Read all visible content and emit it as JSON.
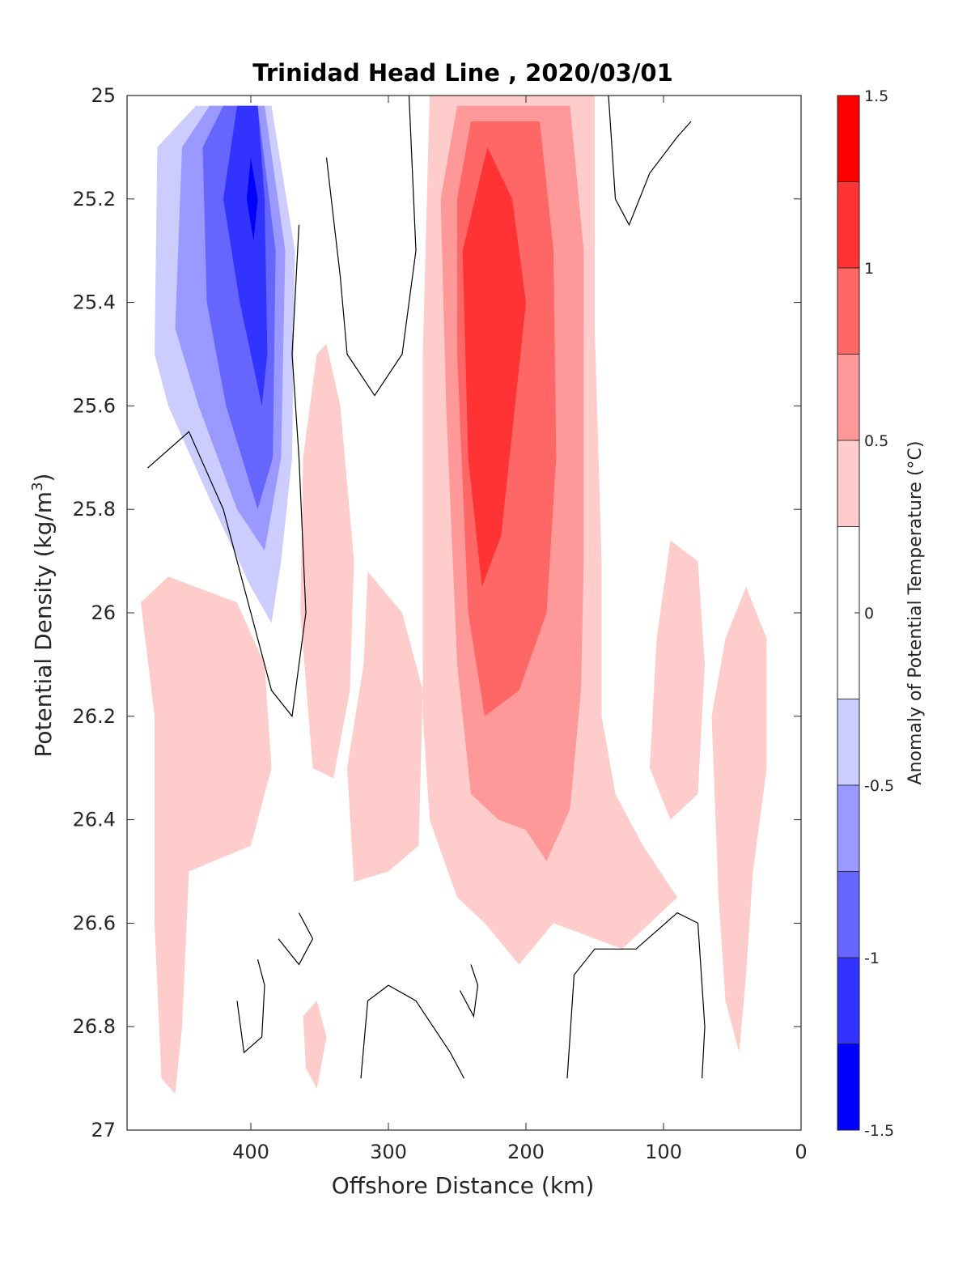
{
  "chart_data": {
    "type": "contourf",
    "title": "Trinidad Head Line , 2020/03/01",
    "xlabel": "Offshore Distance (km)",
    "ylabel_main": "Potential Density (kg/m",
    "ylabel_sup": "3",
    "ylabel_close": ")",
    "x_reversed": true,
    "y_reversed": true,
    "xlim": [
      490,
      0
    ],
    "ylim": [
      25,
      27
    ],
    "xticks": [
      400,
      300,
      200,
      100,
      0
    ],
    "yticks": [
      25,
      25.2,
      25.4,
      25.6,
      25.8,
      26,
      26.2,
      26.4,
      26.6,
      26.8,
      27
    ],
    "colorbar": {
      "label": "Anomaly of Potential Temperature (°C)",
      "range": [
        -1.5,
        1.5
      ],
      "ticks": [
        "1.5",
        "1",
        "0.5",
        "0",
        "-0.5",
        "-1",
        "-1.5"
      ],
      "tick_values": [
        1.5,
        1,
        0.5,
        0,
        -0.5,
        -1,
        -1.5
      ],
      "levels": [
        {
          "from": 1.25,
          "to": 1.5,
          "color": "#ff0000"
        },
        {
          "from": 1.0,
          "to": 1.25,
          "color": "#ff3333"
        },
        {
          "from": 0.75,
          "to": 1.0,
          "color": "#ff6666"
        },
        {
          "from": 0.5,
          "to": 0.75,
          "color": "#ff9999"
        },
        {
          "from": 0.25,
          "to": 0.5,
          "color": "#ffcccc"
        },
        {
          "from": -0.25,
          "to": 0.25,
          "color": "#ffffff"
        },
        {
          "from": -0.5,
          "to": -0.25,
          "color": "#ccccff"
        },
        {
          "from": -0.75,
          "to": -0.5,
          "color": "#9999ff"
        },
        {
          "from": -1.0,
          "to": -0.75,
          "color": "#6666ff"
        },
        {
          "from": -1.25,
          "to": -1.0,
          "color": "#3333ff"
        },
        {
          "from": -1.5,
          "to": -1.25,
          "color": "#0000ff"
        }
      ]
    },
    "filled_regions": [
      {
        "level": 0.375,
        "color": "#ffcccc",
        "points": [
          [
            270,
            25
          ],
          [
            150,
            25
          ],
          [
            150,
            25.45
          ],
          [
            145,
            25.9
          ],
          [
            145,
            26.2
          ],
          [
            135,
            26.35
          ],
          [
            115,
            26.45
          ],
          [
            90,
            26.55
          ],
          [
            110,
            26.6
          ],
          [
            130,
            26.65
          ],
          [
            180,
            26.6
          ],
          [
            205,
            26.68
          ],
          [
            230,
            26.6
          ],
          [
            250,
            26.55
          ],
          [
            270,
            26.4
          ],
          [
            275,
            26.2
          ],
          [
            275,
            25.5
          ]
        ]
      },
      {
        "level": 0.375,
        "color": "#ffcccc",
        "points": [
          [
            345,
            25.48
          ],
          [
            335,
            25.6
          ],
          [
            325,
            25.9
          ],
          [
            328,
            26.15
          ],
          [
            340,
            26.32
          ],
          [
            355,
            26.3
          ],
          [
            364,
            26
          ],
          [
            362,
            25.7
          ],
          [
            352,
            25.5
          ]
        ]
      },
      {
        "level": 0.375,
        "color": "#ffcccc",
        "points": [
          [
            480,
            25.98
          ],
          [
            470,
            26.2
          ],
          [
            470,
            26.6
          ],
          [
            465,
            26.9
          ],
          [
            455,
            26.93
          ],
          [
            450,
            26.8
          ],
          [
            445,
            26.5
          ],
          [
            400,
            26.45
          ],
          [
            385,
            26.3
          ],
          [
            390,
            26.1
          ],
          [
            410,
            25.98
          ],
          [
            440,
            25.95
          ],
          [
            460,
            25.93
          ]
        ]
      },
      {
        "level": 0.375,
        "color": "#ffcccc",
        "points": [
          [
            315,
            25.92
          ],
          [
            290,
            26.0
          ],
          [
            275,
            26.15
          ],
          [
            278,
            26.45
          ],
          [
            300,
            26.5
          ],
          [
            325,
            26.52
          ],
          [
            330,
            26.3
          ],
          [
            318,
            26.1
          ]
        ]
      },
      {
        "level": 0.375,
        "color": "#ffcccc",
        "points": [
          [
            95,
            25.86
          ],
          [
            75,
            25.9
          ],
          [
            70,
            26.1
          ],
          [
            75,
            26.35
          ],
          [
            95,
            26.4
          ],
          [
            110,
            26.3
          ],
          [
            105,
            26.05
          ]
        ]
      },
      {
        "level": 0.375,
        "color": "#ffcccc",
        "points": [
          [
            40,
            25.95
          ],
          [
            25,
            26.05
          ],
          [
            25,
            26.3
          ],
          [
            35,
            26.5
          ],
          [
            40,
            26.7
          ],
          [
            45,
            26.85
          ],
          [
            55,
            26.75
          ],
          [
            60,
            26.55
          ],
          [
            65,
            26.2
          ],
          [
            55,
            26.05
          ]
        ]
      },
      {
        "level": 0.375,
        "color": "#ffcccc",
        "points": [
          [
            352,
            26.75
          ],
          [
            345,
            26.82
          ],
          [
            352,
            26.92
          ],
          [
            360,
            26.88
          ],
          [
            362,
            26.78
          ]
        ]
      },
      {
        "level": 0.625,
        "color": "#ff9999",
        "points": [
          [
            250,
            25.02
          ],
          [
            168,
            25.02
          ],
          [
            158,
            25.3
          ],
          [
            158,
            25.6
          ],
          [
            158,
            25.9
          ],
          [
            160,
            26.15
          ],
          [
            168,
            26.38
          ],
          [
            185,
            26.48
          ],
          [
            200,
            26.42
          ],
          [
            220,
            26.4
          ],
          [
            240,
            26.35
          ],
          [
            250,
            26.1
          ],
          [
            258,
            25.6
          ],
          [
            262,
            25.2
          ]
        ]
      },
      {
        "level": 0.875,
        "color": "#ff6666",
        "points": [
          [
            240,
            25.05
          ],
          [
            190,
            25.05
          ],
          [
            180,
            25.3
          ],
          [
            178,
            25.7
          ],
          [
            185,
            26.0
          ],
          [
            205,
            26.15
          ],
          [
            230,
            26.2
          ],
          [
            242,
            26.0
          ],
          [
            250,
            25.5
          ],
          [
            250,
            25.2
          ]
        ]
      },
      {
        "level": 1.125,
        "color": "#ff3333",
        "points": [
          [
            228,
            25.1
          ],
          [
            210,
            25.2
          ],
          [
            200,
            25.4
          ],
          [
            210,
            25.65
          ],
          [
            218,
            25.85
          ],
          [
            232,
            25.95
          ],
          [
            242,
            25.7
          ],
          [
            246,
            25.3
          ]
        ]
      },
      {
        "level": -0.375,
        "color": "#ccccff",
        "points": [
          [
            440,
            25.02
          ],
          [
            385,
            25.02
          ],
          [
            368,
            25.3
          ],
          [
            370,
            25.7
          ],
          [
            378,
            25.9
          ],
          [
            385,
            26.02
          ],
          [
            400,
            25.95
          ],
          [
            430,
            25.78
          ],
          [
            460,
            25.6
          ],
          [
            470,
            25.5
          ],
          [
            468,
            25.1
          ]
        ]
      },
      {
        "level": -0.625,
        "color": "#9999ff",
        "points": [
          [
            430,
            25.02
          ],
          [
            390,
            25.02
          ],
          [
            375,
            25.3
          ],
          [
            378,
            25.7
          ],
          [
            390,
            25.88
          ],
          [
            410,
            25.8
          ],
          [
            438,
            25.6
          ],
          [
            455,
            25.45
          ],
          [
            450,
            25.1
          ]
        ]
      },
      {
        "level": -0.875,
        "color": "#6666ff",
        "points": [
          [
            420,
            25.02
          ],
          [
            395,
            25.02
          ],
          [
            382,
            25.3
          ],
          [
            384,
            25.7
          ],
          [
            395,
            25.8
          ],
          [
            418,
            25.6
          ],
          [
            432,
            25.4
          ],
          [
            435,
            25.1
          ]
        ]
      },
      {
        "level": -1.125,
        "color": "#3333ff",
        "points": [
          [
            410,
            25.02
          ],
          [
            395,
            25.02
          ],
          [
            390,
            25.2
          ],
          [
            388,
            25.5
          ],
          [
            392,
            25.6
          ],
          [
            408,
            25.4
          ],
          [
            420,
            25.2
          ]
        ]
      },
      {
        "level": -1.375,
        "color": "#0000ff",
        "points": [
          [
            400,
            25.12
          ],
          [
            395,
            25.2
          ],
          [
            398,
            25.28
          ],
          [
            403,
            25.2
          ]
        ]
      }
    ],
    "contour_lines": [
      [
        [
          365,
          25.25
        ],
        [
          370,
          25.5
        ],
        [
          365,
          25.7
        ],
        [
          360,
          26.0
        ],
        [
          370,
          26.2
        ],
        [
          385,
          26.15
        ],
        [
          400,
          26.0
        ],
        [
          420,
          25.8
        ],
        [
          445,
          25.65
        ],
        [
          475,
          25.72
        ]
      ],
      [
        [
          285,
          25.0
        ],
        [
          280,
          25.3
        ],
        [
          290,
          25.5
        ],
        [
          310,
          25.58
        ],
        [
          330,
          25.5
        ],
        [
          335,
          25.35
        ],
        [
          345,
          25.12
        ]
      ],
      [
        [
          140,
          25.0
        ],
        [
          135,
          25.2
        ],
        [
          125,
          25.25
        ],
        [
          110,
          25.15
        ],
        [
          90,
          25.08
        ],
        [
          80,
          25.05
        ]
      ],
      [
        [
          170,
          26.9
        ],
        [
          165,
          26.7
        ],
        [
          150,
          26.65
        ],
        [
          120,
          26.65
        ],
        [
          90,
          26.58
        ],
        [
          75,
          26.6
        ],
        [
          70,
          26.8
        ],
        [
          72,
          26.9
        ]
      ],
      [
        [
          320,
          26.9
        ],
        [
          315,
          26.75
        ],
        [
          300,
          26.72
        ],
        [
          280,
          26.75
        ],
        [
          255,
          26.85
        ],
        [
          245,
          26.9
        ]
      ],
      [
        [
          395,
          26.67
        ],
        [
          390,
          26.72
        ],
        [
          392,
          26.82
        ],
        [
          405,
          26.85
        ],
        [
          410,
          26.75
        ]
      ],
      [
        [
          365,
          26.58
        ],
        [
          355,
          26.63
        ],
        [
          365,
          26.68
        ],
        [
          380,
          26.63
        ]
      ],
      [
        [
          240,
          26.68
        ],
        [
          235,
          26.72
        ],
        [
          238,
          26.78
        ],
        [
          248,
          26.73
        ]
      ]
    ]
  }
}
